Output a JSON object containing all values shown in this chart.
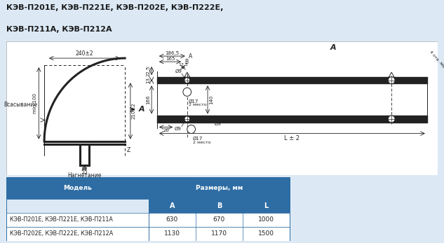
{
  "title_line1": "КЭВ-П201Е, КЭВ-П221Е, КЭВ-П202Е, КЭВ-П222Е,",
  "title_line2": "КЭВ-П211А, КЭВ-П212А",
  "bg_color": "#dce9f5",
  "drawing_bg": "#ffffff",
  "table_header_color": "#2e6da4",
  "table_row1_text": "КЭВ-П201Е, КЭВ-П221Е, КЭВ-П211А",
  "table_row2_text": "КЭВ-П202Е, КЭВ-П222Е, КЭВ-П212А",
  "table_col_headers": [
    "A",
    "B",
    "L"
  ],
  "table_header_main": "Размеры, мм",
  "table_col_model": "Модель",
  "table_data": [
    [
      630,
      670,
      1000
    ],
    [
      1130,
      1170,
      1500
    ]
  ],
  "table_border_color": "#2e6da4"
}
